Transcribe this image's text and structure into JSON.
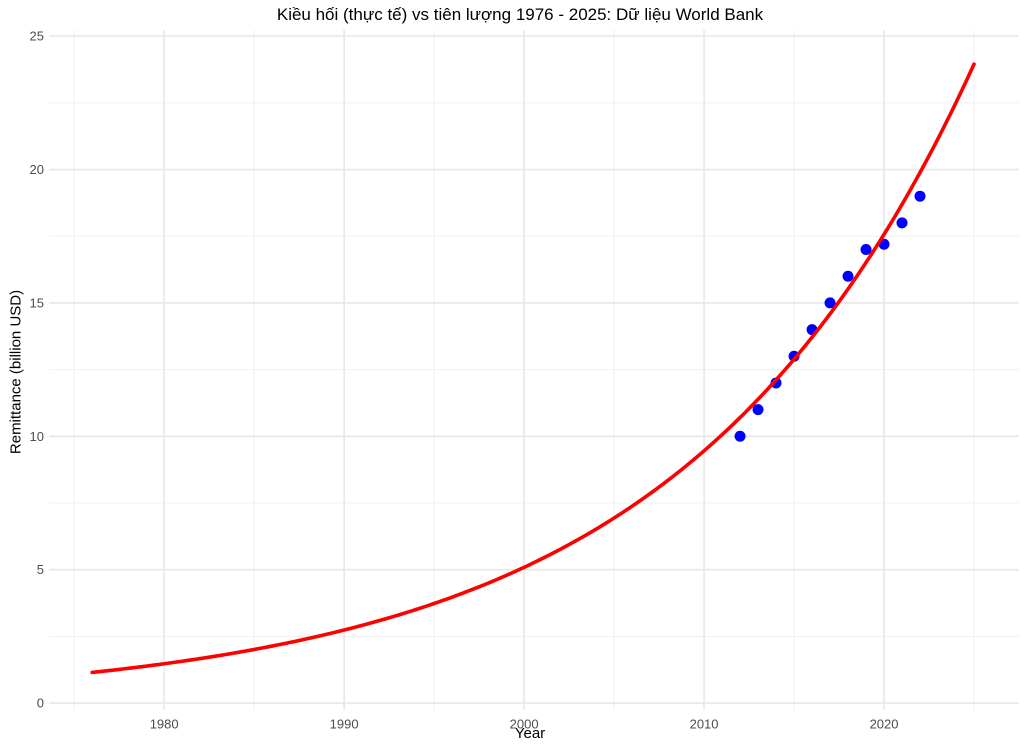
{
  "page": {
    "background": "#ffffff"
  },
  "chart_data": {
    "type": "scatter",
    "title": "Kiều hối (thực tế) vs tiên lượng 1976 - 2025: Dữ liệu World Bank",
    "xlabel": "Year",
    "ylabel": "Remittance (billion USD)",
    "xlim": [
      1973.6,
      2027.5
    ],
    "ylim": [
      -0.26,
      25.23
    ],
    "x_ticks": [
      1980,
      1990,
      2000,
      2010,
      2020
    ],
    "x_minor_ticks": [
      1975,
      1985,
      1995,
      2005,
      2015,
      2025
    ],
    "y_ticks": [
      0,
      5,
      10,
      15,
      20,
      25
    ],
    "y_minor_ticks": [
      2.5,
      7.5,
      12.5,
      17.5,
      22.5
    ],
    "grid": true,
    "legend": "none",
    "series": [
      {
        "name": "actual-remittance-points",
        "type": "scatter",
        "color": "#0000ff",
        "x": [
          2012,
          2013,
          2014,
          2015,
          2016,
          2017,
          2018,
          2019,
          2020,
          2021,
          2022
        ],
        "y": [
          10,
          11,
          12,
          13,
          14,
          15,
          16,
          17,
          17.2,
          18,
          19
        ]
      },
      {
        "name": "forecast-curve",
        "type": "line",
        "color": "#ff0000",
        "model": "exponential",
        "x_start": 1976,
        "x_end": 2025,
        "y_start": 1.15,
        "y_end": 23.95
      }
    ],
    "style": {
      "grid_major_color": "#e7e7e7",
      "grid_minor_color": "#f0f0f0",
      "tick_label_color": "#4d4d4d",
      "text_color": "#000000",
      "background": "#ffffff",
      "point_radius": 5.5,
      "line_width": 3.6
    }
  }
}
